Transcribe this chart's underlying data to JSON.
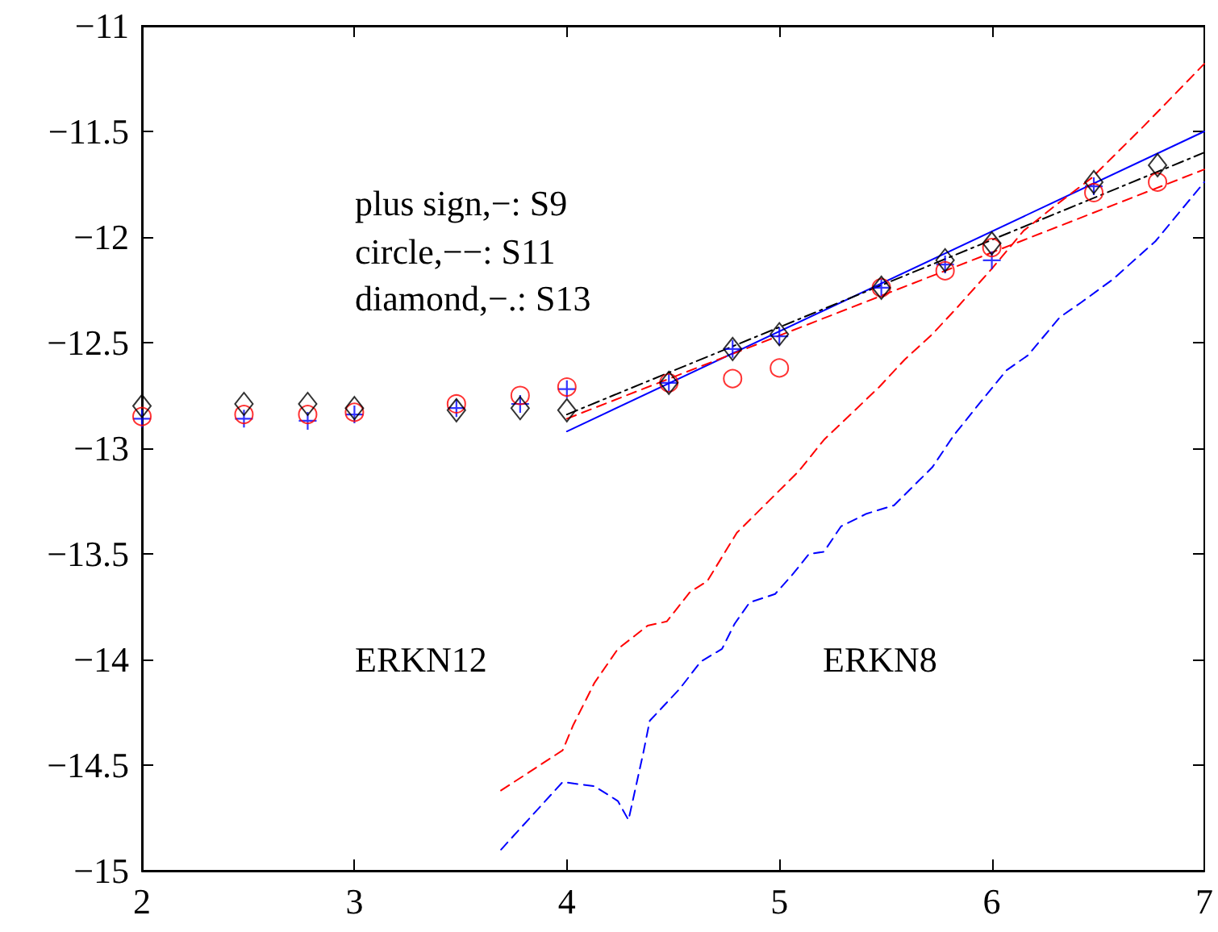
{
  "chart_data": {
    "type": "scatter",
    "xlim": [
      2,
      7
    ],
    "ylim": [
      -15,
      -11
    ],
    "xticks": [
      2,
      3,
      4,
      5,
      6,
      7
    ],
    "yticks": [
      -15,
      -14.5,
      -14,
      -13.5,
      -13,
      -12.5,
      -12,
      -11.5,
      -11
    ],
    "x": [
      2,
      2.48,
      2.78,
      3,
      3.48,
      3.78,
      4,
      4.48,
      4.78,
      5,
      5.48,
      5.78,
      6,
      6.48,
      6.78
    ],
    "series": [
      {
        "type": "scatter",
        "marker": "cross",
        "color": "#0000ff",
        "values": [
          -12.86,
          -12.86,
          -12.87,
          -12.84,
          -12.81,
          -12.79,
          -12.72,
          -12.69,
          -12.53,
          -12.47,
          -12.24,
          -12.13,
          -12.11,
          -11.76,
          null
        ]
      },
      {
        "type": "scatter",
        "marker": "circle",
        "color": "#ff0000",
        "values": [
          -12.85,
          -12.84,
          -12.84,
          -12.83,
          -12.79,
          -12.75,
          -12.71,
          -12.69,
          -12.67,
          -12.62,
          -12.24,
          -12.16,
          -12.05,
          -11.79,
          -11.74
        ]
      },
      {
        "type": "scatter",
        "marker": "diamond",
        "color": "#000000",
        "values": [
          -12.8,
          -12.79,
          -12.79,
          -12.81,
          -12.82,
          -12.81,
          -12.82,
          -12.69,
          -12.53,
          -12.46,
          -12.24,
          -12.11,
          -12.03,
          -11.74,
          -11.66
        ]
      },
      {
        "type": "line",
        "line_style": "solid",
        "color": "#0000ff",
        "x": [
          4,
          7
        ],
        "values": [
          -12.92,
          -11.5
        ]
      },
      {
        "type": "line",
        "line_style": "dashed",
        "color": "#ff0000",
        "x": [
          4,
          7
        ],
        "values": [
          -12.86,
          -11.68
        ]
      },
      {
        "type": "line",
        "line_style": "dashdot",
        "color": "#000000",
        "x": [
          4,
          7
        ],
        "values": [
          -12.84,
          -11.6
        ]
      },
      {
        "type": "line",
        "line_style": "dashed",
        "color": "#ff0000",
        "x": [
          3.69,
          3.98,
          4.03,
          4.13,
          4.24,
          4.38,
          4.47,
          4.58,
          4.66,
          4.8,
          4.96,
          5.09,
          5.21,
          5.47,
          5.59,
          5.72,
          5.84,
          6,
          6.15,
          6.3,
          6.47,
          6.72,
          7
        ],
        "values": [
          -14.62,
          -14.43,
          -14.31,
          -14.11,
          -13.95,
          -13.84,
          -13.82,
          -13.68,
          -13.63,
          -13.4,
          -13.24,
          -13.11,
          -12.96,
          -12.71,
          -12.58,
          -12.46,
          -12.33,
          -12.15,
          -11.97,
          -11.85,
          -11.72,
          -11.47,
          -11.18
        ]
      },
      {
        "type": "line",
        "line_style": "dashed",
        "color": "#0000ff",
        "x": [
          3.69,
          3.98,
          4.13,
          4.24,
          4.29,
          4.36,
          4.39,
          4.53,
          4.63,
          4.73,
          4.79,
          4.86,
          4.98,
          5.06,
          5.14,
          5.21,
          5.29,
          5.41,
          5.54,
          5.64,
          5.72,
          5.82,
          5.94,
          6.07,
          6.17,
          6.32,
          6.42,
          6.57,
          6.77,
          7
        ],
        "values": [
          -14.9,
          -14.58,
          -14.6,
          -14.67,
          -14.76,
          -14.44,
          -14.29,
          -14.14,
          -14.01,
          -13.95,
          -13.83,
          -13.73,
          -13.69,
          -13.6,
          -13.5,
          -13.49,
          -13.37,
          -13.31,
          -13.27,
          -13.17,
          -13.09,
          -12.94,
          -12.79,
          -12.63,
          -12.56,
          -12.38,
          -12.31,
          -12.2,
          -12.02,
          -11.74
        ]
      }
    ],
    "annotations": [
      "plus sign,−: S9",
      "circle,−−: S11",
      "diamond,−.: S13",
      "ERKN12",
      "ERKN8"
    ]
  }
}
